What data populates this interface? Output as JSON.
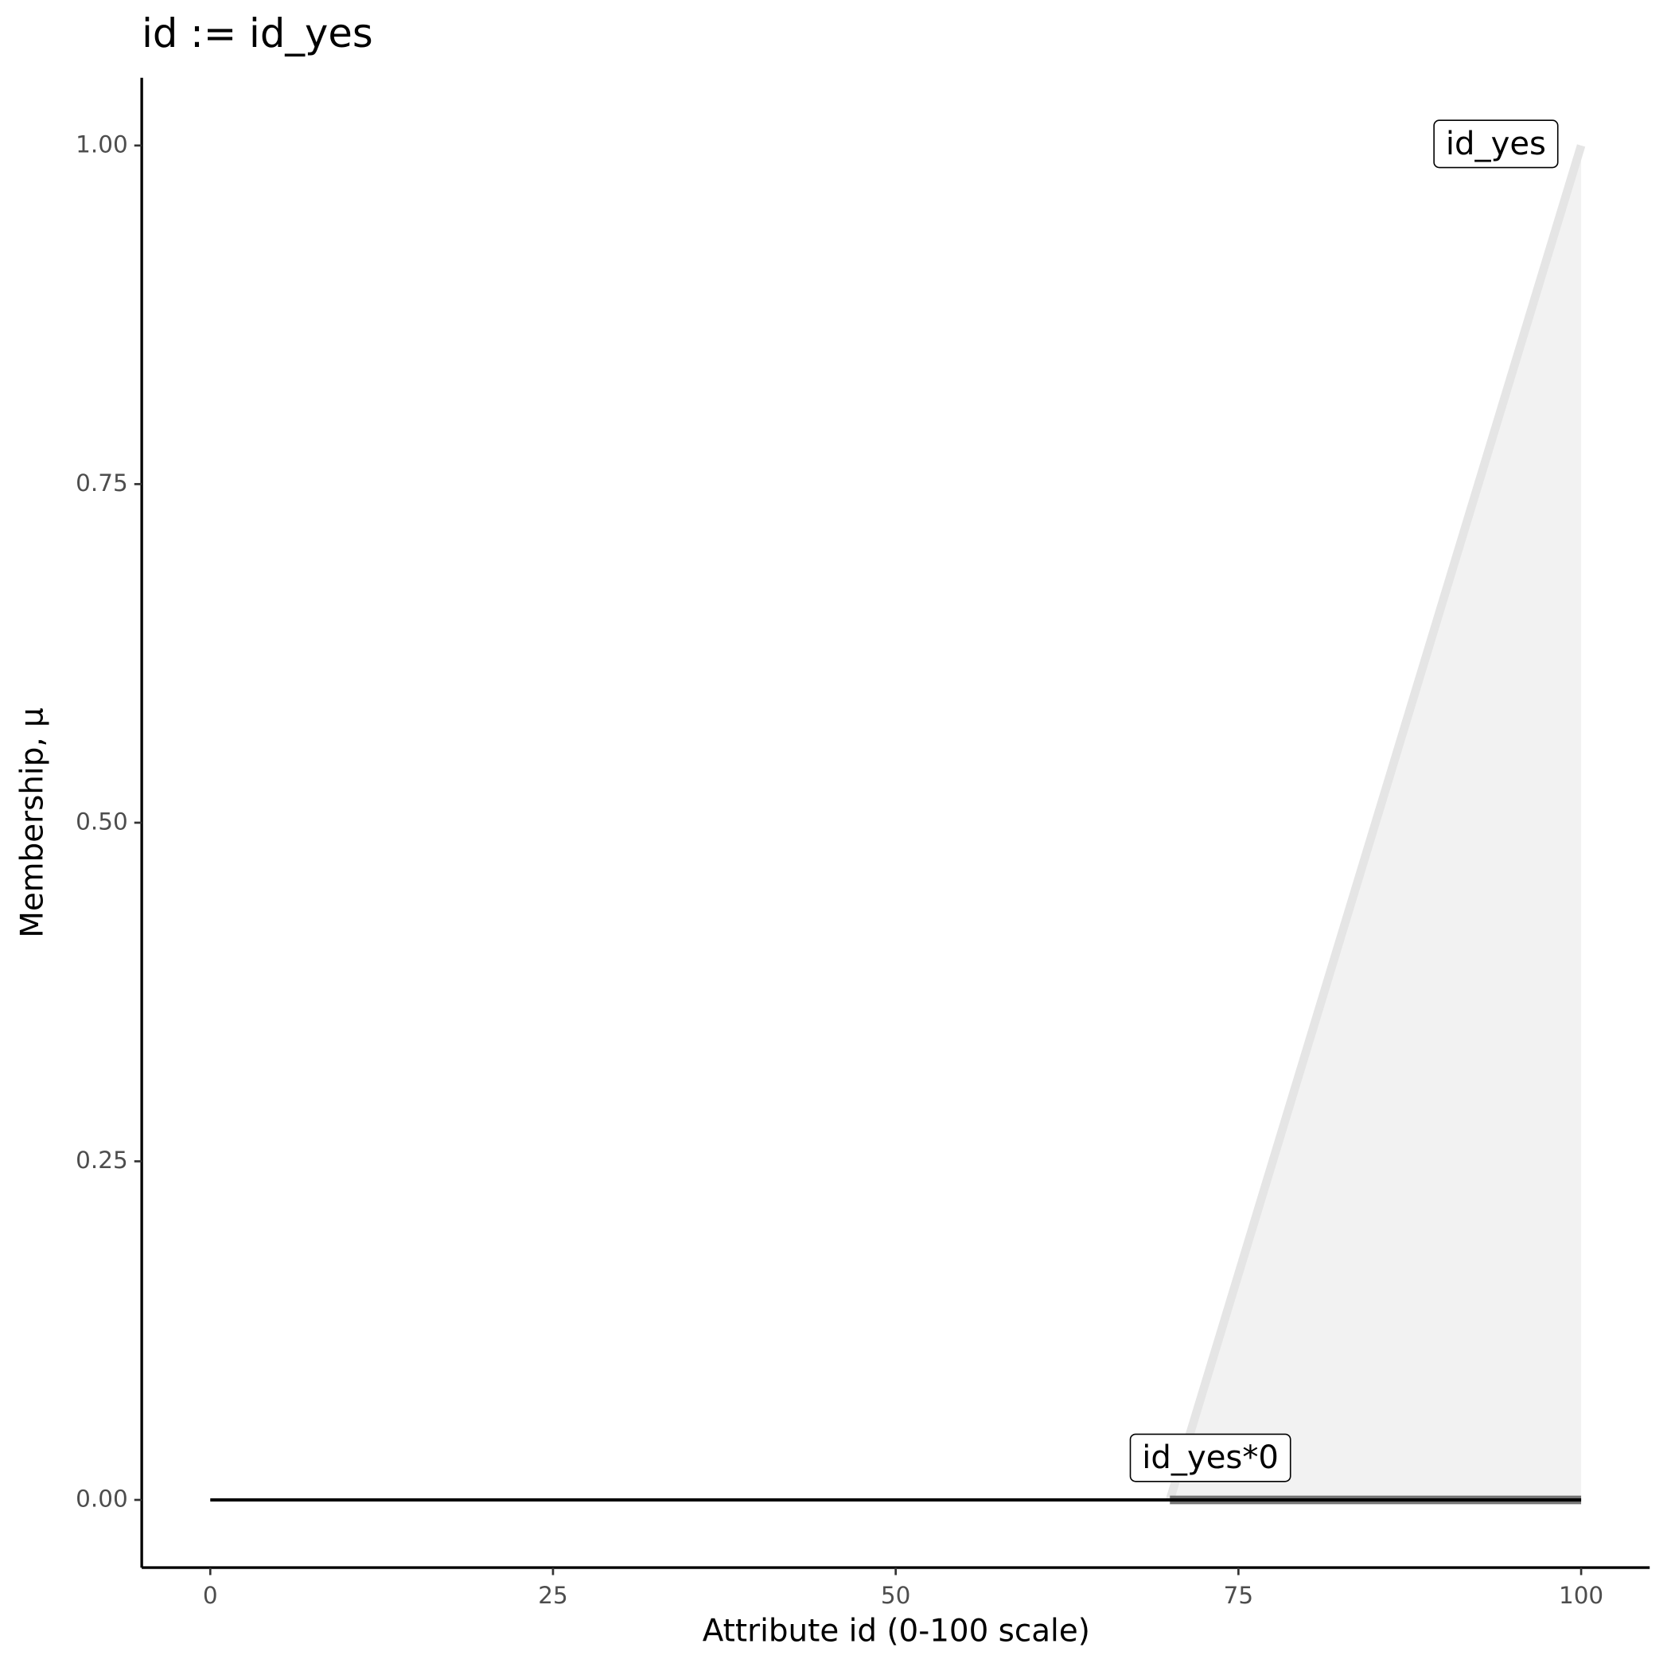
{
  "chart_data": {
    "type": "line",
    "title": "id := id_yes",
    "x_label": "Attribute id (0-100 scale)",
    "y_label": "Membership, μ",
    "xlim": [
      -5,
      105
    ],
    "ylim": [
      -0.05,
      1.05
    ],
    "xticks": [
      0,
      25,
      50,
      75,
      100
    ],
    "yticks": [
      {
        "value": 0,
        "label": "0.00"
      },
      {
        "value": 0.25,
        "label": "0.25"
      },
      {
        "value": 0.5,
        "label": "0.50"
      },
      {
        "value": 0.75,
        "label": "0.75"
      },
      {
        "value": 1,
        "label": "1.00"
      }
    ],
    "grid": false,
    "series": [
      {
        "name": "id_yes",
        "color": "#e5e5e5",
        "fill_color": "#f2f2f2",
        "fill": true,
        "x": [
          70,
          100
        ],
        "values": [
          0,
          1
        ]
      },
      {
        "name": "id_yes*0",
        "color": "#666666",
        "x": [
          70,
          100
        ],
        "values": [
          0,
          0
        ]
      },
      {
        "color": "#000000",
        "x": [
          0,
          100
        ],
        "values": [
          0,
          0
        ]
      }
    ]
  }
}
